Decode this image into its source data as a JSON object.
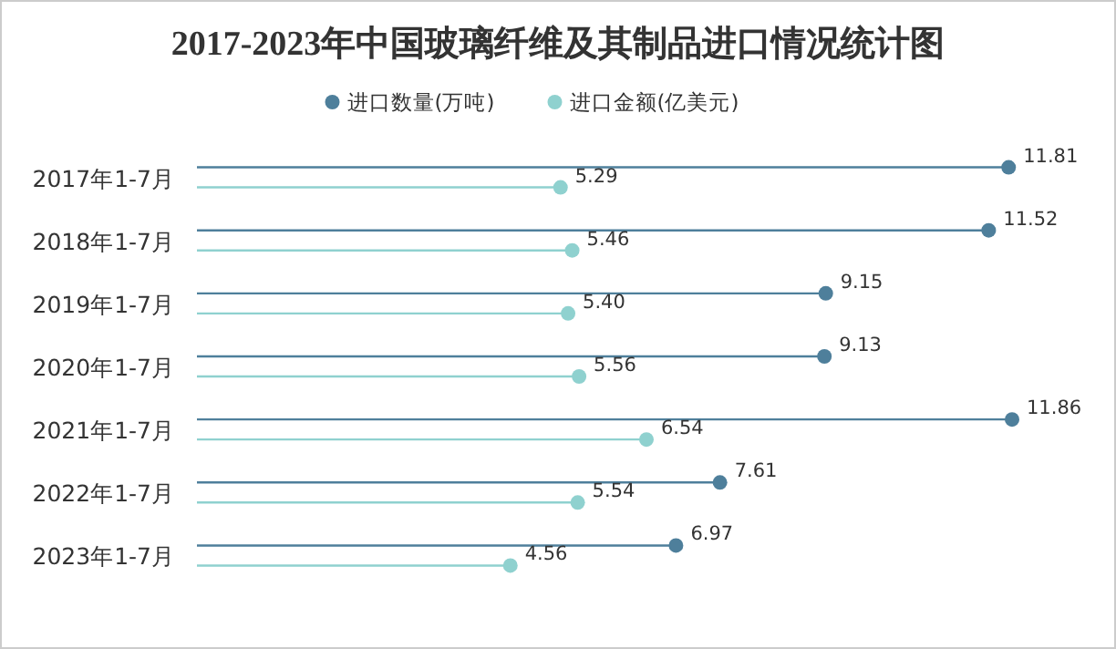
{
  "chart_data": {
    "type": "lollipop",
    "orientation": "horizontal",
    "title": "2017-2023年中国玻璃纤维及其制品进口情况统计图",
    "categories": [
      "2017年1-7月",
      "2018年1-7月",
      "2019年1-7月",
      "2020年1-7月",
      "2021年1-7月",
      "2022年1-7月",
      "2023年1-7月"
    ],
    "series": [
      {
        "name": "进口数量(万吨)",
        "color": "#4e7f9b",
        "values": [
          11.81,
          11.52,
          9.15,
          9.13,
          11.86,
          7.61,
          6.97
        ],
        "value_labels": [
          "11.81",
          "11.52",
          "9.15",
          "9.13",
          "11.86",
          "7.61",
          "6.97"
        ]
      },
      {
        "name": "进口金额(亿美元)",
        "color": "#8fd1cf",
        "values": [
          5.29,
          5.46,
          5.4,
          5.56,
          6.54,
          5.54,
          4.56
        ],
        "value_labels": [
          "5.29",
          "5.46",
          "5.40",
          "5.56",
          "6.54",
          "5.54",
          "4.56"
        ]
      }
    ],
    "legend": "top"
  }
}
